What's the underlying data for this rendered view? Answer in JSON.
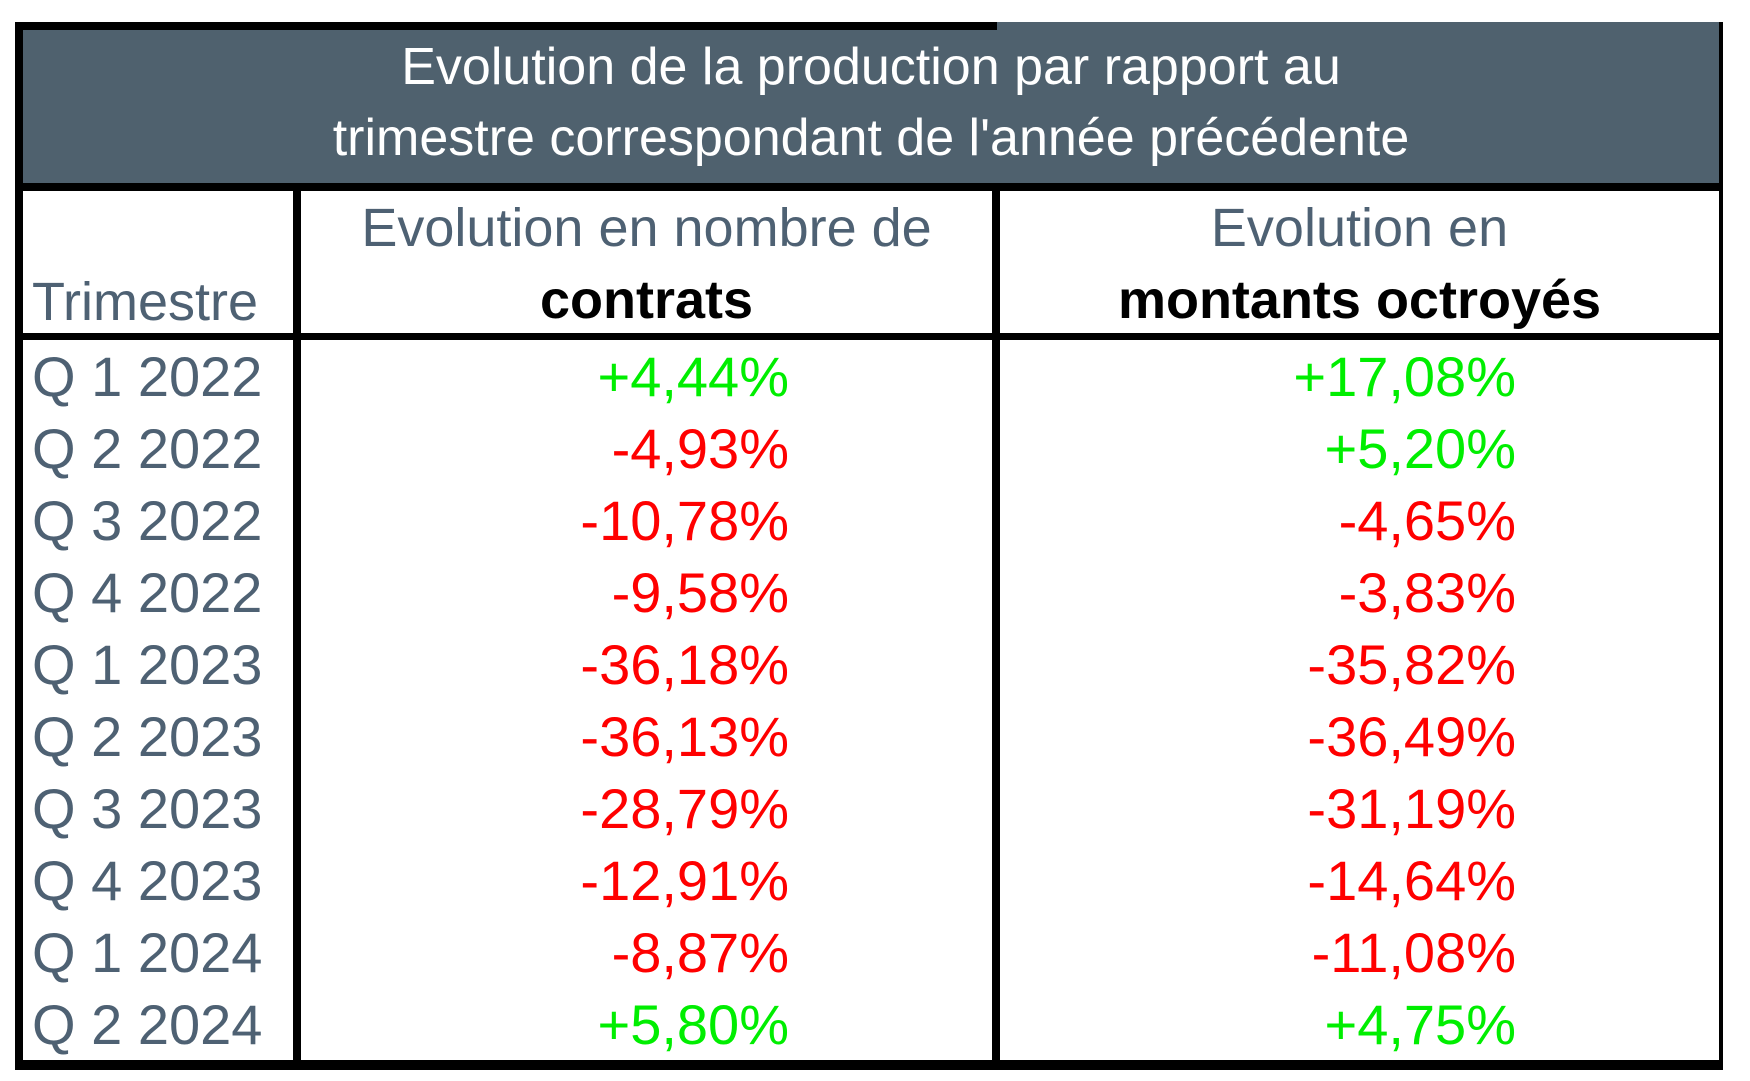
{
  "colors": {
    "header-bg": "#4f616e",
    "slate-text": "#4e6173",
    "positive": "#00ee00",
    "negative": "#ff0000",
    "border": "#000000"
  },
  "title": {
    "line1": "Evolution de la production par rapport au",
    "line2": "trimestre correspondant de l'année précédente"
  },
  "columns": {
    "quarter": {
      "label": "Trimestre"
    },
    "contracts": {
      "label_top": "Evolution en nombre de",
      "label_bottom": "contrats"
    },
    "amounts": {
      "label_top": "Evolution en",
      "label_bottom": "montants octroyés"
    }
  },
  "rows": [
    {
      "quarter": "Q 1 2022",
      "contracts": "+4,44%",
      "contracts_trend": "positive",
      "amounts": "+17,08%",
      "amounts_trend": "positive"
    },
    {
      "quarter": "Q 2 2022",
      "contracts": "-4,93%",
      "contracts_trend": "negative",
      "amounts": "+5,20%",
      "amounts_trend": "positive"
    },
    {
      "quarter": "Q 3 2022",
      "contracts": "-10,78%",
      "contracts_trend": "negative",
      "amounts": "-4,65%",
      "amounts_trend": "negative"
    },
    {
      "quarter": "Q 4 2022",
      "contracts": "-9,58%",
      "contracts_trend": "negative",
      "amounts": "-3,83%",
      "amounts_trend": "negative"
    },
    {
      "quarter": "Q 1 2023",
      "contracts": "-36,18%",
      "contracts_trend": "negative",
      "amounts": "-35,82%",
      "amounts_trend": "negative"
    },
    {
      "quarter": "Q 2 2023",
      "contracts": "-36,13%",
      "contracts_trend": "negative",
      "amounts": "-36,49%",
      "amounts_trend": "negative"
    },
    {
      "quarter": "Q 3 2023",
      "contracts": "-28,79%",
      "contracts_trend": "negative",
      "amounts": "-31,19%",
      "amounts_trend": "negative"
    },
    {
      "quarter": "Q 4 2023",
      "contracts": "-12,91%",
      "contracts_trend": "negative",
      "amounts": "-14,64%",
      "amounts_trend": "negative"
    },
    {
      "quarter": "Q 1 2024",
      "contracts": "-8,87%",
      "contracts_trend": "negative",
      "amounts": "-11,08%",
      "amounts_trend": "negative"
    },
    {
      "quarter": "Q 2 2024",
      "contracts": "+5,80%",
      "contracts_trend": "positive",
      "amounts": "+4,75%",
      "amounts_trend": "positive"
    }
  ],
  "chart_data": {
    "type": "table",
    "title": "Evolution de la production par rapport au trimestre correspondant de l'année précédente",
    "categories": [
      "Q 1 2022",
      "Q 2 2022",
      "Q 3 2022",
      "Q 4 2022",
      "Q 1 2023",
      "Q 2 2023",
      "Q 3 2023",
      "Q 4 2023",
      "Q 1 2024",
      "Q 2 2024"
    ],
    "series": [
      {
        "name": "Evolution en nombre de contrats",
        "values": [
          4.44,
          -4.93,
          -10.78,
          -9.58,
          -36.18,
          -36.13,
          -28.79,
          -12.91,
          -8.87,
          5.8
        ]
      },
      {
        "name": "Evolution en montants octroyés",
        "values": [
          17.08,
          5.2,
          -4.65,
          -3.83,
          -35.82,
          -36.49,
          -31.19,
          -14.64,
          -11.08,
          4.75
        ]
      }
    ],
    "units": "%",
    "decimal_separator": ",",
    "value_color_rule": "positive values green, negative values red"
  }
}
